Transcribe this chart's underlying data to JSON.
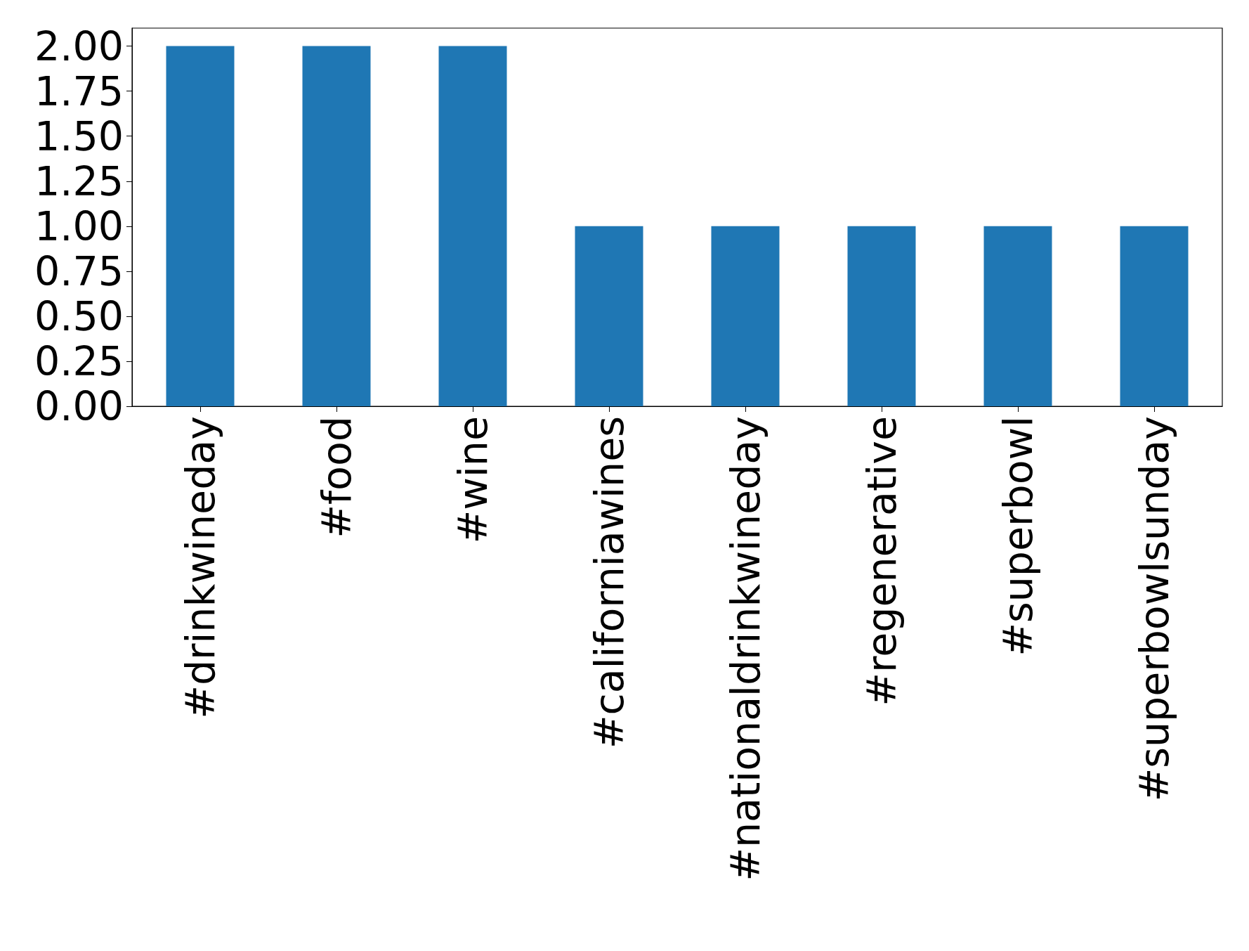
{
  "chart_data": {
    "type": "bar",
    "categories": [
      "#drinkwineday",
      "#food",
      "#wine",
      "#californiawines",
      "#nationaldrinkwineday",
      "#regenerative",
      "#superbowl",
      "#superbowlsunday"
    ],
    "values": [
      2,
      2,
      2,
      1,
      1,
      1,
      1,
      1
    ],
    "color": "#1f77b4",
    "ylim": [
      0,
      2.1
    ],
    "yticks": [
      {
        "value": 0,
        "label": "0.00"
      },
      {
        "value": 0.25,
        "label": "0.25"
      },
      {
        "value": 0.5,
        "label": "0.50"
      },
      {
        "value": 0.75,
        "label": "0.75"
      },
      {
        "value": 1,
        "label": "1.00"
      },
      {
        "value": 1.25,
        "label": "1.25"
      },
      {
        "value": 1.5,
        "label": "1.50"
      },
      {
        "value": 1.75,
        "label": "1.75"
      },
      {
        "value": 2,
        "label": "2.00"
      }
    ],
    "grid": false
  }
}
